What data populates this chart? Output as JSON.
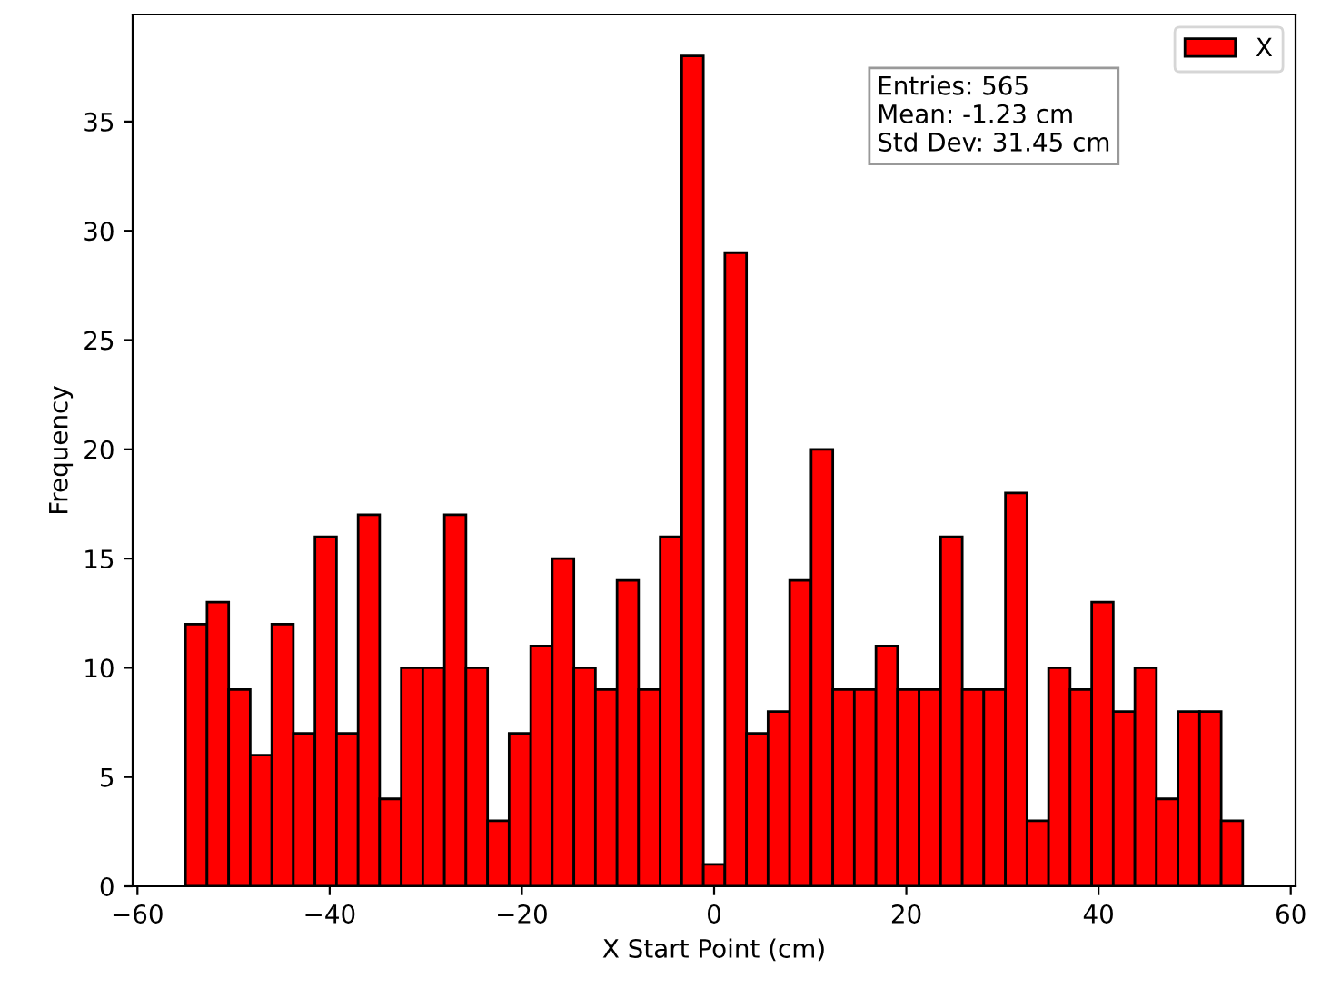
{
  "chart_data": {
    "type": "histogram",
    "xlabel": "X Start Point (cm)",
    "ylabel": "Frequency",
    "bins": [
      -55,
      -52.76,
      -50.51,
      -48.27,
      -46.02,
      -43.78,
      -41.53,
      -39.29,
      -37.04,
      -34.8,
      -32.55,
      -30.31,
      -28.06,
      -25.82,
      -23.57,
      -21.33,
      -19.08,
      -16.84,
      -14.59,
      -12.35,
      -10.1,
      -7.86,
      -5.61,
      -3.37,
      -1.12,
      1.12,
      3.37,
      5.61,
      7.86,
      10.1,
      12.35,
      14.59,
      16.84,
      19.08,
      21.33,
      23.57,
      25.82,
      28.06,
      30.31,
      32.55,
      34.8,
      37.04,
      39.29,
      41.53,
      43.78,
      46.02,
      48.27,
      50.51,
      52.76,
      55
    ],
    "series": [
      {
        "name": "X",
        "color": "#ff0000",
        "values": [
          12,
          13,
          9,
          6,
          12,
          7,
          16,
          7,
          17,
          4,
          10,
          10,
          17,
          10,
          3,
          7,
          11,
          15,
          10,
          9,
          14,
          9,
          16,
          38,
          1,
          29,
          7,
          8,
          14,
          20,
          9,
          9,
          11,
          9,
          9,
          16,
          9,
          9,
          18,
          3,
          10,
          9,
          13,
          8,
          10,
          4,
          8,
          8,
          3
        ]
      }
    ],
    "annotations": [
      "Entries: 565\nMean: -1.23 cm\nStd Dev: 31.45 cm"
    ],
    "xlim": [
      -60.5,
      60.5
    ],
    "xticks": [
      {
        "value": -60,
        "label": "−60"
      },
      {
        "value": -40,
        "label": "−40"
      },
      {
        "value": -20,
        "label": "−20"
      },
      0,
      20,
      40,
      60
    ],
    "ylim": [
      0,
      39.9
    ],
    "yticks": [
      0,
      5,
      10,
      15,
      20,
      25,
      30,
      35
    ],
    "grid": false,
    "legend": "top right"
  }
}
